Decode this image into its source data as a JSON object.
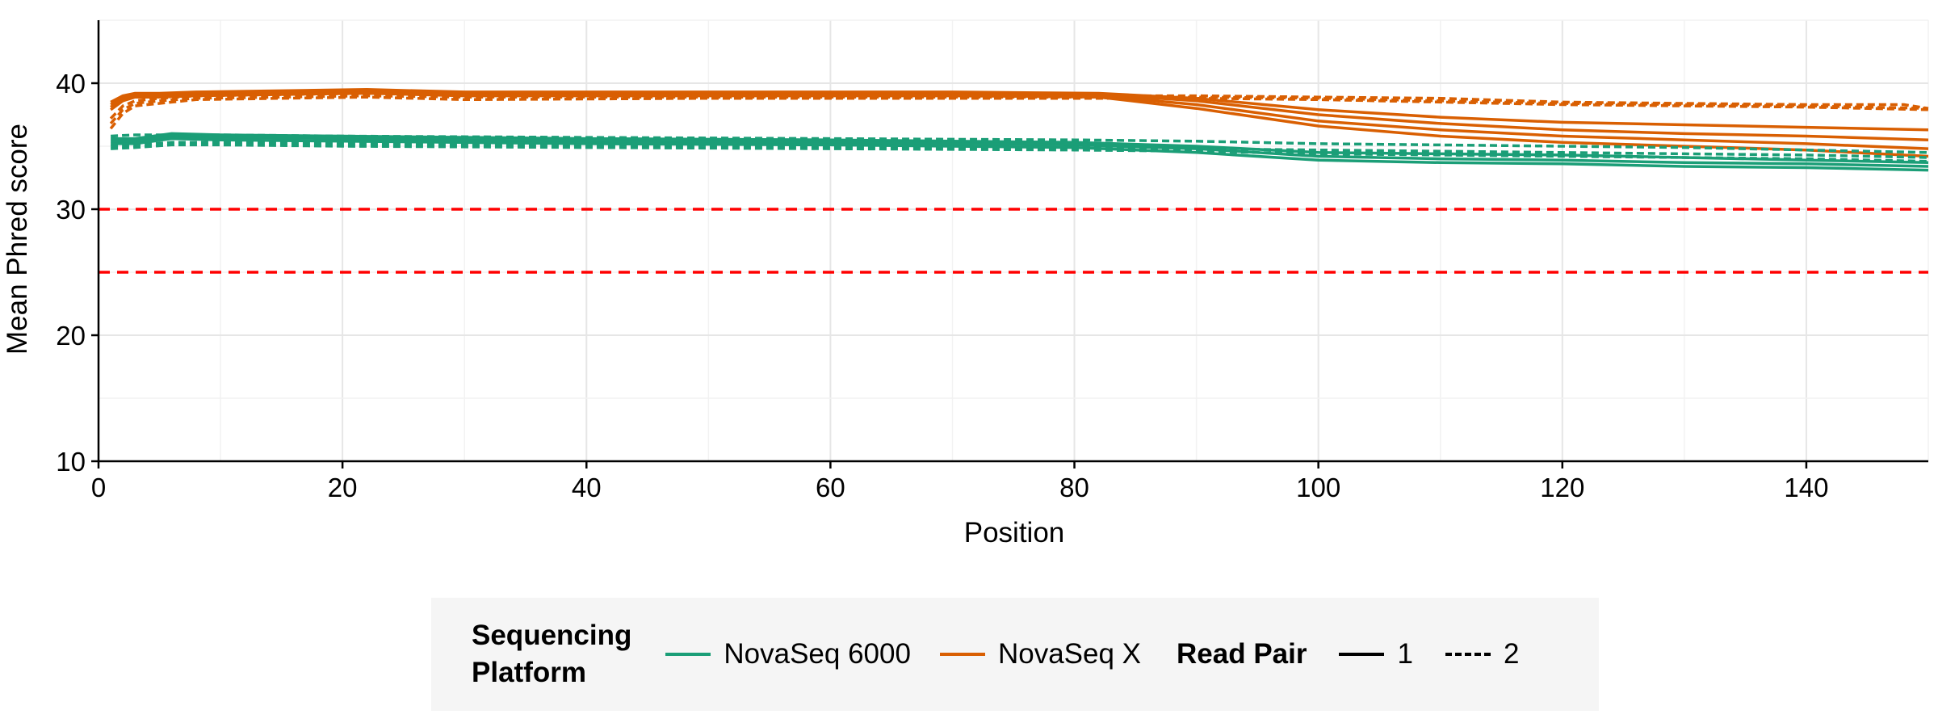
{
  "chart_data": {
    "type": "line",
    "xlabel": "Position",
    "ylabel": "Mean Phred score",
    "xlim": [
      0,
      150
    ],
    "ylim": [
      10,
      45
    ],
    "xticks": [
      0,
      20,
      40,
      60,
      80,
      100,
      120,
      140
    ],
    "yticks": [
      10,
      20,
      30,
      40
    ],
    "grid": true,
    "reference_lines": [
      {
        "y": 30,
        "color": "#ff0000",
        "style": "dashed"
      },
      {
        "y": 25,
        "color": "#ff0000",
        "style": "dashed"
      }
    ],
    "colors": {
      "NovaSeq 6000": "#1b9e77",
      "NovaSeq X": "#d95f02"
    },
    "series": [
      {
        "platform": "NovaSeq X",
        "read": "1",
        "x": [
          1,
          2,
          3,
          5,
          8,
          15,
          22,
          30,
          50,
          70,
          82,
          90,
          100,
          110,
          120,
          130,
          140,
          150
        ],
        "y": [
          38.5,
          39.0,
          39.2,
          39.2,
          39.3,
          39.4,
          39.5,
          39.3,
          39.3,
          39.3,
          39.2,
          38.8,
          37.9,
          37.3,
          36.9,
          36.7,
          36.5,
          36.3
        ]
      },
      {
        "platform": "NovaSeq X",
        "read": "1",
        "x": [
          1,
          2,
          3,
          5,
          8,
          15,
          22,
          30,
          50,
          70,
          82,
          90,
          100,
          110,
          120,
          130,
          140,
          150
        ],
        "y": [
          38.3,
          38.9,
          39.1,
          39.1,
          39.2,
          39.3,
          39.4,
          39.2,
          39.2,
          39.2,
          39.1,
          38.6,
          37.5,
          36.8,
          36.3,
          36.0,
          35.8,
          35.5
        ]
      },
      {
        "platform": "NovaSeq X",
        "read": "1",
        "x": [
          1,
          2,
          3,
          5,
          8,
          15,
          22,
          30,
          50,
          70,
          82,
          90,
          100,
          110,
          120,
          130,
          140,
          150
        ],
        "y": [
          38.1,
          38.8,
          39.0,
          39.0,
          39.1,
          39.2,
          39.3,
          39.1,
          39.1,
          39.1,
          39.0,
          38.3,
          37.0,
          36.3,
          35.8,
          35.5,
          35.2,
          34.8
        ]
      },
      {
        "platform": "NovaSeq X",
        "read": "1",
        "x": [
          1,
          2,
          3,
          5,
          8,
          15,
          22,
          30,
          50,
          70,
          82,
          90,
          100,
          110,
          120,
          130,
          140,
          150
        ],
        "y": [
          37.9,
          38.6,
          38.9,
          38.9,
          39.0,
          39.1,
          39.2,
          39.0,
          39.0,
          39.0,
          38.9,
          38.0,
          36.6,
          35.8,
          35.3,
          35.0,
          34.7,
          34.2
        ]
      },
      {
        "platform": "NovaSeq X",
        "read": "2",
        "x": [
          1,
          2,
          3,
          5,
          8,
          15,
          22,
          30,
          50,
          70,
          82,
          90,
          100,
          110,
          120,
          130,
          140,
          148,
          150
        ],
        "y": [
          37.2,
          38.2,
          38.6,
          38.8,
          39.0,
          39.1,
          39.2,
          39.1,
          39.1,
          39.1,
          39.0,
          39.0,
          38.9,
          38.8,
          38.5,
          38.4,
          38.3,
          38.3,
          38.0
        ]
      },
      {
        "platform": "NovaSeq X",
        "read": "2",
        "x": [
          1,
          2,
          3,
          5,
          8,
          15,
          22,
          30,
          50,
          70,
          82,
          90,
          100,
          110,
          120,
          130,
          140,
          150
        ],
        "y": [
          36.8,
          37.9,
          38.4,
          38.6,
          38.8,
          38.9,
          39.0,
          38.9,
          38.9,
          38.9,
          38.9,
          38.9,
          38.8,
          38.6,
          38.4,
          38.3,
          38.2,
          38.0
        ]
      },
      {
        "platform": "NovaSeq X",
        "read": "2",
        "x": [
          1,
          2,
          3,
          5,
          8,
          15,
          22,
          30,
          50,
          70,
          82,
          90,
          100,
          110,
          120,
          130,
          140,
          150
        ],
        "y": [
          36.4,
          37.6,
          38.2,
          38.4,
          38.7,
          38.8,
          38.9,
          38.7,
          38.8,
          38.8,
          38.8,
          38.8,
          38.7,
          38.5,
          38.3,
          38.2,
          38.1,
          37.9
        ]
      },
      {
        "platform": "NovaSeq 6000",
        "read": "1",
        "x": [
          1,
          3,
          6,
          10,
          20,
          40,
          60,
          80,
          90,
          100,
          110,
          120,
          130,
          140,
          150
        ],
        "y": [
          35.6,
          35.6,
          36.0,
          35.9,
          35.8,
          35.6,
          35.5,
          35.3,
          35.0,
          34.5,
          34.4,
          34.3,
          34.1,
          33.9,
          33.7
        ]
      },
      {
        "platform": "NovaSeq 6000",
        "read": "1",
        "x": [
          1,
          3,
          6,
          10,
          20,
          40,
          60,
          80,
          90,
          100,
          110,
          120,
          130,
          140,
          150
        ],
        "y": [
          35.4,
          35.4,
          35.8,
          35.7,
          35.6,
          35.4,
          35.3,
          35.1,
          34.8,
          34.2,
          34.0,
          33.9,
          33.7,
          33.6,
          33.4
        ]
      },
      {
        "platform": "NovaSeq 6000",
        "read": "1",
        "x": [
          1,
          3,
          6,
          10,
          20,
          40,
          60,
          80,
          90,
          100,
          110,
          120,
          130,
          140,
          150
        ],
        "y": [
          35.2,
          35.2,
          35.6,
          35.5,
          35.4,
          35.2,
          35.1,
          34.9,
          34.5,
          33.9,
          33.7,
          33.6,
          33.4,
          33.3,
          33.1
        ]
      },
      {
        "platform": "NovaSeq 6000",
        "read": "2",
        "x": [
          1,
          3,
          6,
          10,
          20,
          40,
          60,
          80,
          90,
          100,
          110,
          120,
          130,
          140,
          150
        ],
        "y": [
          35.8,
          35.9,
          35.9,
          35.9,
          35.8,
          35.7,
          35.6,
          35.5,
          35.4,
          35.2,
          35.1,
          35.0,
          34.9,
          34.7,
          34.5
        ]
      },
      {
        "platform": "NovaSeq 6000",
        "read": "2",
        "x": [
          1,
          3,
          6,
          10,
          20,
          40,
          60,
          80,
          90,
          100,
          110,
          120,
          130,
          140,
          150
        ],
        "y": [
          35.0,
          35.1,
          35.3,
          35.3,
          35.2,
          35.1,
          35.0,
          34.9,
          34.8,
          34.7,
          34.6,
          34.5,
          34.4,
          34.3,
          34.1
        ]
      },
      {
        "platform": "NovaSeq 6000",
        "read": "2",
        "x": [
          1,
          3,
          6,
          10,
          20,
          40,
          60,
          80,
          90,
          100,
          110,
          120,
          130,
          140,
          150
        ],
        "y": [
          34.8,
          34.9,
          35.1,
          35.1,
          35.0,
          34.9,
          34.8,
          34.7,
          34.6,
          34.4,
          34.3,
          34.2,
          34.1,
          34.0,
          33.8
        ]
      }
    ],
    "legend": {
      "placement": "bottom",
      "color_title_line1": "Sequencing",
      "color_title_line2": "Platform",
      "color_entries": [
        "NovaSeq 6000",
        "NovaSeq X"
      ],
      "linetype_title": "Read Pair",
      "linetype_entries": [
        "1",
        "2"
      ]
    }
  }
}
